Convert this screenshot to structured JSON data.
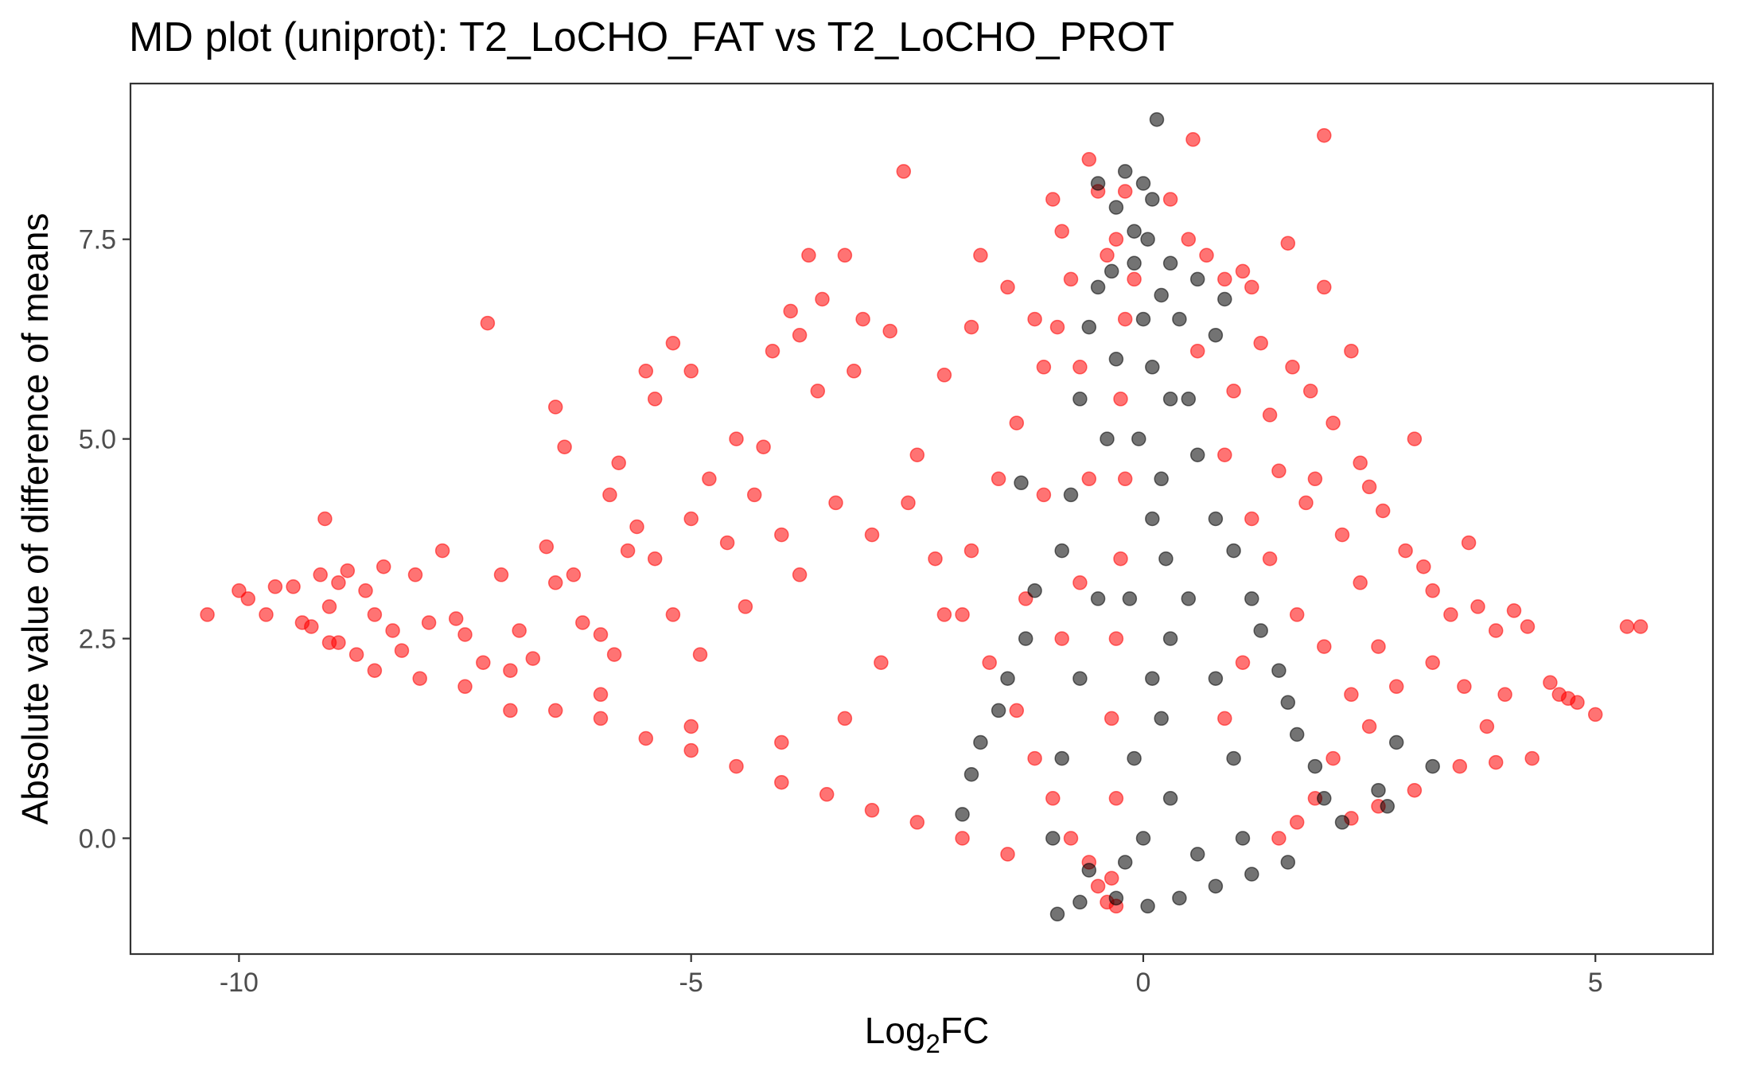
{
  "chart_data": {
    "type": "scatter",
    "title": "MD plot (uniprot): T2_LoCHO_FAT vs T2_LoCHO_PROT",
    "xlabel": "Log",
    "xlabel_sub": "2",
    "xlabel_tail": "FC",
    "ylabel": "Absolute value of difference of means",
    "xlim": [
      -11.2,
      6.3
    ],
    "ylim": [
      -1.45,
      9.45
    ],
    "x_ticks": [
      {
        "value": -10,
        "label": "-10"
      },
      {
        "value": -5,
        "label": "-5"
      },
      {
        "value": 0,
        "label": "0"
      },
      {
        "value": 5,
        "label": "5"
      }
    ],
    "y_ticks": [
      {
        "value": 0,
        "label": "0.0"
      },
      {
        "value": 2.5,
        "label": "2.5"
      },
      {
        "value": 5,
        "label": "5.0"
      },
      {
        "value": 7.5,
        "label": "7.5"
      }
    ],
    "grid": false,
    "legend": "none",
    "series_colors": {
      "significant": "#ff0000",
      "not_significant": "#000000"
    },
    "series": [
      {
        "color": "#ff0000",
        "points": [
          [
            -10.35,
            2.8
          ],
          [
            -10.0,
            3.1
          ],
          [
            -9.9,
            3.0
          ],
          [
            -9.7,
            2.8
          ],
          [
            -9.6,
            3.15
          ],
          [
            -9.4,
            3.15
          ],
          [
            -9.3,
            2.7
          ],
          [
            -9.2,
            2.65
          ],
          [
            -9.1,
            3.3
          ],
          [
            -9.05,
            4.0
          ],
          [
            -9.0,
            2.9
          ],
          [
            -8.9,
            3.2
          ],
          [
            -8.8,
            3.35
          ],
          [
            -8.9,
            2.45
          ],
          [
            -8.7,
            2.3
          ],
          [
            -8.6,
            3.1
          ],
          [
            -8.5,
            2.8
          ],
          [
            -8.4,
            3.4
          ],
          [
            -8.3,
            2.6
          ],
          [
            -8.2,
            2.35
          ],
          [
            -8.05,
            3.3
          ],
          [
            -7.9,
            2.7
          ],
          [
            -7.75,
            3.6
          ],
          [
            -7.6,
            2.75
          ],
          [
            -7.5,
            2.55
          ],
          [
            -7.3,
            2.2
          ],
          [
            -7.1,
            3.3
          ],
          [
            -6.9,
            2.6
          ],
          [
            -6.75,
            2.25
          ],
          [
            -6.5,
            3.2
          ],
          [
            -6.2,
            2.7
          ],
          [
            -6.0,
            2.55
          ],
          [
            -5.85,
            2.3
          ],
          [
            -7.25,
            6.45
          ],
          [
            -6.5,
            5.4
          ],
          [
            -6.4,
            4.9
          ],
          [
            -6.6,
            3.65
          ],
          [
            -6.3,
            3.3
          ],
          [
            -5.8,
            4.7
          ],
          [
            -5.9,
            4.3
          ],
          [
            -5.5,
            5.85
          ],
          [
            -5.4,
            5.5
          ],
          [
            -5.2,
            6.2
          ],
          [
            -5.0,
            5.85
          ],
          [
            -5.7,
            3.6
          ],
          [
            -5.6,
            3.9
          ],
          [
            -5.4,
            3.5
          ],
          [
            -5.0,
            4.0
          ],
          [
            -4.8,
            4.5
          ],
          [
            -4.6,
            3.7
          ],
          [
            -4.3,
            4.3
          ],
          [
            -4.0,
            3.8
          ],
          [
            -4.5,
            5.0
          ],
          [
            -4.1,
            6.1
          ],
          [
            -3.9,
            6.6
          ],
          [
            -3.8,
            6.3
          ],
          [
            -3.55,
            6.75
          ],
          [
            -3.3,
            7.3
          ],
          [
            -3.7,
            7.3
          ],
          [
            -3.1,
            6.5
          ],
          [
            -2.8,
            6.35
          ],
          [
            -2.65,
            8.35
          ],
          [
            -3.2,
            5.85
          ],
          [
            -4.2,
            4.9
          ],
          [
            -3.6,
            5.6
          ],
          [
            -3.4,
            4.2
          ],
          [
            -5.2,
            2.8
          ],
          [
            -4.9,
            2.3
          ],
          [
            -4.4,
            2.9
          ],
          [
            -3.8,
            3.3
          ],
          [
            -3.0,
            3.8
          ],
          [
            -2.6,
            4.2
          ],
          [
            -2.2,
            5.8
          ],
          [
            -1.9,
            6.4
          ],
          [
            -1.8,
            7.3
          ],
          [
            -1.5,
            6.9
          ],
          [
            -1.2,
            6.5
          ],
          [
            -1.0,
            8.0
          ],
          [
            -0.9,
            7.6
          ],
          [
            -0.8,
            7.0
          ],
          [
            -0.6,
            8.5
          ],
          [
            -0.5,
            8.1
          ],
          [
            -0.4,
            7.3
          ],
          [
            -0.3,
            7.5
          ],
          [
            -0.2,
            8.1
          ],
          [
            -0.1,
            7.0
          ],
          [
            0.3,
            8.0
          ],
          [
            0.55,
            8.75
          ],
          [
            0.5,
            7.5
          ],
          [
            0.7,
            7.3
          ],
          [
            0.9,
            7.0
          ],
          [
            1.1,
            7.1
          ],
          [
            1.2,
            6.9
          ],
          [
            1.6,
            7.45
          ],
          [
            2.0,
            8.8
          ],
          [
            2.0,
            6.9
          ],
          [
            2.3,
            6.1
          ],
          [
            1.85,
            5.6
          ],
          [
            2.1,
            5.2
          ],
          [
            2.4,
            4.7
          ],
          [
            2.5,
            4.4
          ],
          [
            2.65,
            4.1
          ],
          [
            3.0,
            5.0
          ],
          [
            2.9,
            3.6
          ],
          [
            3.1,
            3.4
          ],
          [
            3.6,
            3.7
          ],
          [
            3.2,
            3.1
          ],
          [
            3.4,
            2.8
          ],
          [
            3.7,
            2.9
          ],
          [
            3.9,
            2.6
          ],
          [
            4.1,
            2.85
          ],
          [
            4.25,
            2.65
          ],
          [
            3.55,
            1.9
          ],
          [
            4.0,
            1.8
          ],
          [
            4.5,
            1.95
          ],
          [
            4.6,
            1.8
          ],
          [
            4.7,
            1.75
          ],
          [
            4.8,
            1.7
          ],
          [
            5.0,
            1.55
          ],
          [
            5.35,
            2.65
          ],
          [
            5.5,
            2.65
          ],
          [
            4.3,
            1.0
          ],
          [
            3.9,
            0.95
          ],
          [
            3.5,
            0.9
          ],
          [
            3.0,
            0.6
          ],
          [
            2.6,
            0.4
          ],
          [
            2.3,
            0.25
          ],
          [
            -1.4,
            5.2
          ],
          [
            -1.1,
            4.3
          ],
          [
            -0.7,
            5.9
          ],
          [
            0.6,
            6.1
          ],
          [
            1.0,
            5.6
          ],
          [
            1.4,
            5.3
          ],
          [
            1.5,
            4.6
          ],
          [
            1.8,
            4.2
          ],
          [
            2.2,
            3.8
          ],
          [
            2.4,
            3.2
          ],
          [
            2.6,
            2.4
          ],
          [
            2.8,
            1.9
          ],
          [
            3.2,
            2.2
          ],
          [
            3.8,
            1.4
          ],
          [
            2.1,
            1.0
          ],
          [
            1.9,
            0.5
          ],
          [
            1.7,
            0.2
          ],
          [
            1.5,
            0.0
          ],
          [
            -2.3,
            3.5
          ],
          [
            -2.0,
            2.8
          ],
          [
            -1.7,
            2.2
          ],
          [
            -1.4,
            1.6
          ],
          [
            -1.2,
            1.0
          ],
          [
            -1.0,
            0.5
          ],
          [
            -0.8,
            0.0
          ],
          [
            -0.6,
            -0.3
          ],
          [
            -0.5,
            -0.6
          ],
          [
            -0.4,
            -0.8
          ],
          [
            -0.3,
            -0.85
          ],
          [
            -0.35,
            -0.5
          ],
          [
            -0.3,
            0.5
          ],
          [
            -0.35,
            1.5
          ],
          [
            -0.3,
            2.5
          ],
          [
            -0.25,
            3.5
          ],
          [
            -0.2,
            4.5
          ],
          [
            -0.25,
            5.5
          ],
          [
            -0.2,
            6.5
          ],
          [
            -2.5,
            4.8
          ],
          [
            -2.9,
            2.2
          ],
          [
            -3.3,
            1.5
          ],
          [
            -4.0,
            1.2
          ],
          [
            -5.0,
            1.4
          ],
          [
            -6.0,
            1.8
          ],
          [
            -7.0,
            1.6
          ],
          [
            -8.0,
            2.0
          ],
          [
            -8.5,
            2.1
          ],
          [
            -9.0,
            2.45
          ],
          [
            -7.0,
            2.1
          ],
          [
            -6.0,
            1.5
          ],
          [
            -5.0,
            1.1
          ],
          [
            -4.0,
            0.7
          ],
          [
            -3.0,
            0.35
          ],
          [
            -2.0,
            0.0
          ],
          [
            -1.5,
            -0.2
          ],
          [
            -2.5,
            0.2
          ],
          [
            -3.5,
            0.55
          ],
          [
            -4.5,
            0.9
          ],
          [
            -5.5,
            1.25
          ],
          [
            -6.5,
            1.6
          ],
          [
            -7.5,
            1.9
          ],
          [
            -1.6,
            4.5
          ],
          [
            -1.9,
            3.6
          ],
          [
            -2.2,
            2.8
          ],
          [
            -1.3,
            3.0
          ],
          [
            -0.9,
            2.5
          ],
          [
            -0.7,
            3.2
          ],
          [
            -0.6,
            4.5
          ],
          [
            -1.1,
            5.9
          ],
          [
            -0.95,
            6.4
          ],
          [
            0.9,
            4.8
          ],
          [
            1.2,
            4.0
          ],
          [
            1.4,
            3.5
          ],
          [
            1.7,
            2.8
          ],
          [
            2.0,
            2.4
          ],
          [
            2.3,
            1.8
          ],
          [
            2.5,
            1.4
          ],
          [
            1.1,
            2.2
          ],
          [
            0.9,
            1.5
          ],
          [
            1.3,
            6.2
          ],
          [
            1.65,
            5.9
          ],
          [
            1.9,
            4.5
          ]
        ]
      },
      {
        "color": "#000000",
        "points": [
          [
            0.15,
            9.0
          ],
          [
            -0.5,
            8.2
          ],
          [
            -0.2,
            8.35
          ],
          [
            0.0,
            8.2
          ],
          [
            0.1,
            8.0
          ],
          [
            -0.3,
            7.9
          ],
          [
            -0.1,
            7.6
          ],
          [
            0.05,
            7.5
          ],
          [
            -0.35,
            7.1
          ],
          [
            0.3,
            7.2
          ],
          [
            0.6,
            7.0
          ],
          [
            0.9,
            6.75
          ],
          [
            0.8,
            6.3
          ],
          [
            -0.5,
            6.9
          ],
          [
            -0.1,
            7.2
          ],
          [
            0.2,
            6.8
          ],
          [
            0.4,
            6.5
          ],
          [
            -0.6,
            6.4
          ],
          [
            -0.3,
            6.0
          ],
          [
            0.1,
            5.9
          ],
          [
            0.5,
            5.5
          ],
          [
            -0.7,
            5.5
          ],
          [
            -0.4,
            5.0
          ],
          [
            0.6,
            4.8
          ],
          [
            -1.35,
            4.45
          ],
          [
            -0.8,
            4.3
          ],
          [
            0.8,
            4.0
          ],
          [
            1.0,
            3.6
          ],
          [
            -0.9,
            3.6
          ],
          [
            -1.2,
            3.1
          ],
          [
            1.2,
            3.0
          ],
          [
            1.3,
            2.6
          ],
          [
            -1.3,
            2.5
          ],
          [
            -1.5,
            2.0
          ],
          [
            1.5,
            2.1
          ],
          [
            1.6,
            1.7
          ],
          [
            -1.6,
            1.6
          ],
          [
            -1.8,
            1.2
          ],
          [
            1.7,
            1.3
          ],
          [
            1.9,
            0.9
          ],
          [
            -1.9,
            0.8
          ],
          [
            -2.0,
            0.3
          ],
          [
            2.0,
            0.5
          ],
          [
            2.2,
            0.2
          ],
          [
            -0.95,
            -0.95
          ],
          [
            -0.7,
            -0.8
          ],
          [
            -0.3,
            -0.75
          ],
          [
            0.05,
            -0.85
          ],
          [
            0.4,
            -0.75
          ],
          [
            0.8,
            -0.6
          ],
          [
            1.2,
            -0.45
          ],
          [
            1.6,
            -0.3
          ],
          [
            2.8,
            1.2
          ],
          [
            2.6,
            0.6
          ],
          [
            3.2,
            0.9
          ],
          [
            2.7,
            0.4
          ],
          [
            -0.2,
            -0.3
          ],
          [
            0.3,
            0.5
          ],
          [
            0.2,
            1.5
          ],
          [
            0.3,
            2.5
          ],
          [
            0.25,
            3.5
          ],
          [
            0.2,
            4.5
          ],
          [
            0.3,
            5.5
          ],
          [
            0.0,
            6.5
          ],
          [
            -0.5,
            3.0
          ],
          [
            -0.7,
            2.0
          ],
          [
            -0.9,
            1.0
          ],
          [
            -1.0,
            0.0
          ],
          [
            0.5,
            3.0
          ],
          [
            0.8,
            2.0
          ],
          [
            1.0,
            1.0
          ],
          [
            1.1,
            0.0
          ],
          [
            0.6,
            -0.2
          ],
          [
            -0.6,
            -0.4
          ],
          [
            0.0,
            0.0
          ],
          [
            -0.1,
            1.0
          ],
          [
            0.1,
            2.0
          ],
          [
            -0.15,
            3.0
          ],
          [
            0.1,
            4.0
          ],
          [
            -0.05,
            5.0
          ]
        ]
      }
    ]
  }
}
